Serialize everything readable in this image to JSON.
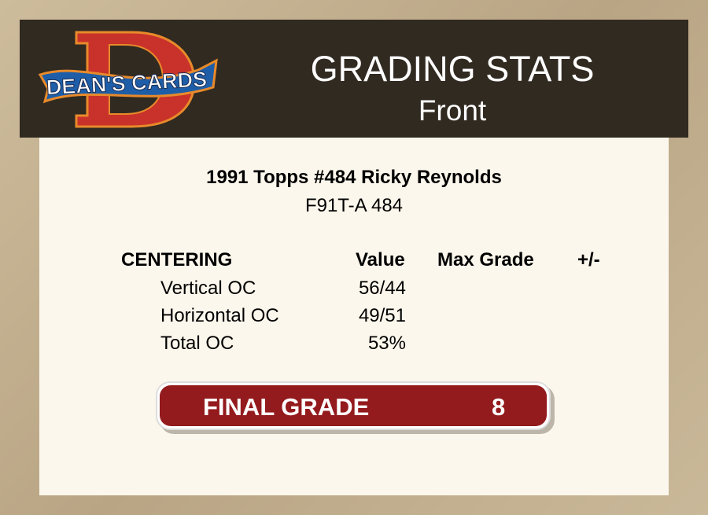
{
  "logo": {
    "text": "DEAN'S CARDS",
    "letter": "D"
  },
  "header": {
    "title": "GRADING STATS",
    "subtitle": "Front"
  },
  "card": {
    "name": "1991 Topps #484 Ricky Reynolds",
    "code": "F91T-A 484"
  },
  "centering": {
    "headers": [
      "CENTERING",
      "Value",
      "Max Grade",
      "+/-"
    ],
    "rows": [
      {
        "label": "Vertical OC",
        "value": "56/44"
      },
      {
        "label": "Horizontal OC",
        "value": "49/51"
      },
      {
        "label": "Total OC",
        "value": "53%"
      }
    ]
  },
  "final_grade": {
    "label": "FINAL GRADE",
    "value": "8"
  },
  "colors": {
    "header_bg": "#312a21",
    "panel_bg": "#fcf7ec",
    "grade_bar": "#931a1d"
  }
}
